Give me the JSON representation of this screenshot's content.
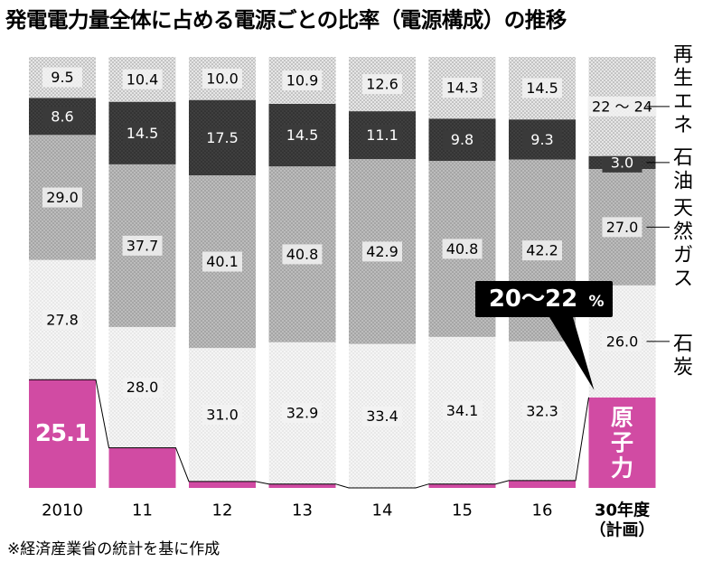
{
  "chart_data": {
    "type": "bar",
    "stacked": true,
    "percent_stack": true,
    "title": "発電電力量全体に占める電源ごとの比率（電源構成）の推移",
    "categories": [
      "2010",
      "11",
      "12",
      "13",
      "14",
      "15",
      "16"
    ],
    "plan_category": [
      "30年度",
      "（計画）"
    ],
    "series": [
      {
        "name": "原子力",
        "values": [
          25.1,
          9.3,
          1.5,
          0.9,
          0.0,
          0.9,
          1.7
        ],
        "plan": [
          20,
          22
        ],
        "plan_label": "",
        "color": "#d14ba3"
      },
      {
        "name": "石炭",
        "values": [
          27.8,
          28.0,
          31.0,
          32.9,
          33.4,
          34.1,
          32.3
        ],
        "plan": 26.0,
        "plan_label": "26.0",
        "color": "#ebebeb"
      },
      {
        "name": "天然ガス",
        "values": [
          29.0,
          37.7,
          40.1,
          40.8,
          42.9,
          40.8,
          42.2
        ],
        "plan": 27.0,
        "plan_label": "27.0",
        "color": "#a6a6a6"
      },
      {
        "name": "石油",
        "values": [
          8.6,
          14.5,
          17.5,
          14.5,
          11.1,
          9.8,
          9.3
        ],
        "plan": 3.0,
        "plan_label": "3.0",
        "color": "#3a3a3a"
      },
      {
        "name": "再生エネ",
        "values": [
          9.5,
          10.4,
          10.0,
          10.9,
          12.6,
          14.3,
          14.5
        ],
        "plan": [
          22,
          24
        ],
        "plan_label": "22 〜 24",
        "color": "#cfcfcf"
      }
    ],
    "nuclear_labels": [
      "25.1",
      "9.3",
      "1.5",
      "0.9",
      "0.0",
      "0.9",
      "1.7"
    ],
    "segment_labels": [
      [
        "25.1",
        "27.8",
        "29.0",
        "8.6",
        "9.5"
      ],
      [
        "9.3",
        "28.0",
        "37.7",
        "14.5",
        "10.4"
      ],
      [
        "1.5",
        "31.0",
        "40.1",
        "17.5",
        "10.0"
      ],
      [
        "0.9",
        "32.9",
        "40.8",
        "14.5",
        "10.9"
      ],
      [
        "0.0",
        "33.4",
        "42.9",
        "11.1",
        "12.6"
      ],
      [
        "0.9",
        "34.1",
        "40.8",
        "9.8",
        "14.3"
      ],
      [
        "1.7",
        "32.3",
        "42.2",
        "9.3",
        "14.5"
      ]
    ],
    "plan_callout": "20〜22",
    "plan_callout_unit": "%",
    "plan_nuclear_label": [
      "原",
      "子",
      "力"
    ],
    "legend_position": "right",
    "grid": false
  },
  "note": "※経済産業省の統計を基に作成"
}
